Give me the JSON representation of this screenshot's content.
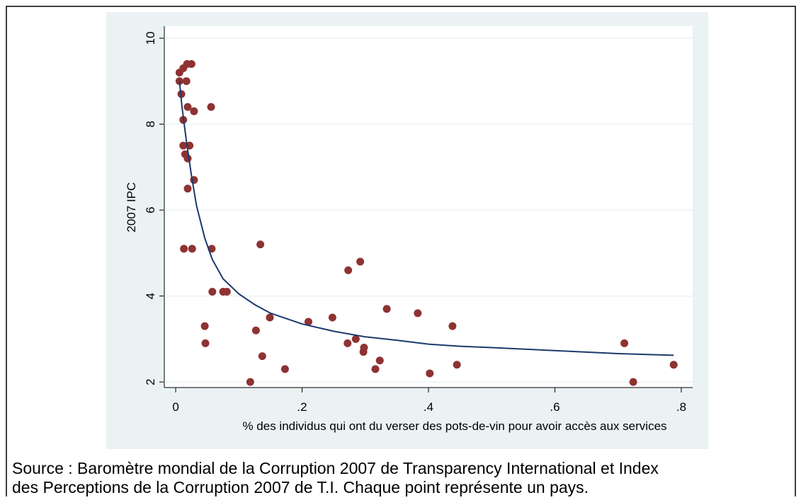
{
  "chart_data": {
    "type": "scatter",
    "xlabel": "% des individus qui ont du verser des pots-de-vin pour avoir accès aux services",
    "ylabel": "2007 IPC",
    "xlim": [
      -0.018,
      0.818
    ],
    "ylim": [
      1.87,
      10.28
    ],
    "xticks": [
      0,
      {
        "value": 0.2,
        "label": ".2"
      },
      {
        "value": 0.4,
        "label": ".4"
      },
      {
        "value": 0.6,
        "label": ".6"
      },
      {
        "value": 0.8,
        "label": ".8"
      }
    ],
    "yticks": [
      2,
      4,
      6,
      8,
      10
    ],
    "grid": true,
    "points": {
      "color": "#8e3232",
      "x": [
        0.006,
        0.006,
        0.009,
        0.012,
        0.018,
        0.025,
        0.017,
        0.019,
        0.029,
        0.056,
        0.012,
        0.012,
        0.022,
        0.015,
        0.019,
        0.029,
        0.019,
        0.013,
        0.026,
        0.057,
        0.134,
        0.058,
        0.075,
        0.081,
        0.046,
        0.047,
        0.127,
        0.137,
        0.118,
        0.173,
        0.149,
        0.21,
        0.248,
        0.273,
        0.292,
        0.272,
        0.285,
        0.298,
        0.297,
        0.323,
        0.316,
        0.334,
        0.383,
        0.402,
        0.438,
        0.445,
        0.71,
        0.724,
        0.788
      ],
      "y": [
        9.2,
        9.0,
        8.7,
        9.3,
        9.4,
        9.4,
        9.0,
        8.4,
        8.3,
        8.4,
        8.1,
        7.5,
        7.5,
        7.3,
        7.2,
        6.7,
        6.5,
        5.1,
        5.1,
        5.1,
        5.2,
        4.1,
        4.1,
        4.1,
        3.3,
        2.9,
        3.2,
        2.6,
        2.0,
        2.3,
        3.5,
        3.4,
        3.5,
        4.6,
        4.8,
        2.9,
        3.0,
        2.8,
        2.7,
        2.5,
        2.3,
        3.7,
        3.6,
        2.2,
        3.3,
        2.4,
        2.9,
        2.0,
        2.4
      ]
    },
    "fit": {
      "color": "#1a3a6b",
      "x": [
        0.006,
        0.01,
        0.017,
        0.025,
        0.033,
        0.046,
        0.058,
        0.075,
        0.1,
        0.125,
        0.15,
        0.2,
        0.25,
        0.3,
        0.35,
        0.4,
        0.45,
        0.5,
        0.6,
        0.7,
        0.788
      ],
      "y": [
        9.0,
        8.4,
        7.6,
        6.8,
        6.1,
        5.35,
        4.85,
        4.4,
        4.05,
        3.8,
        3.6,
        3.35,
        3.18,
        3.05,
        2.97,
        2.88,
        2.83,
        2.8,
        2.73,
        2.66,
        2.62
      ]
    },
    "caption": [
      "Source : Baromètre mondial de la Corruption 2007 de Transparency International et Index",
      "des Perceptions de la Corruption 2007 de T.I. Chaque point représente un pays."
    ]
  }
}
